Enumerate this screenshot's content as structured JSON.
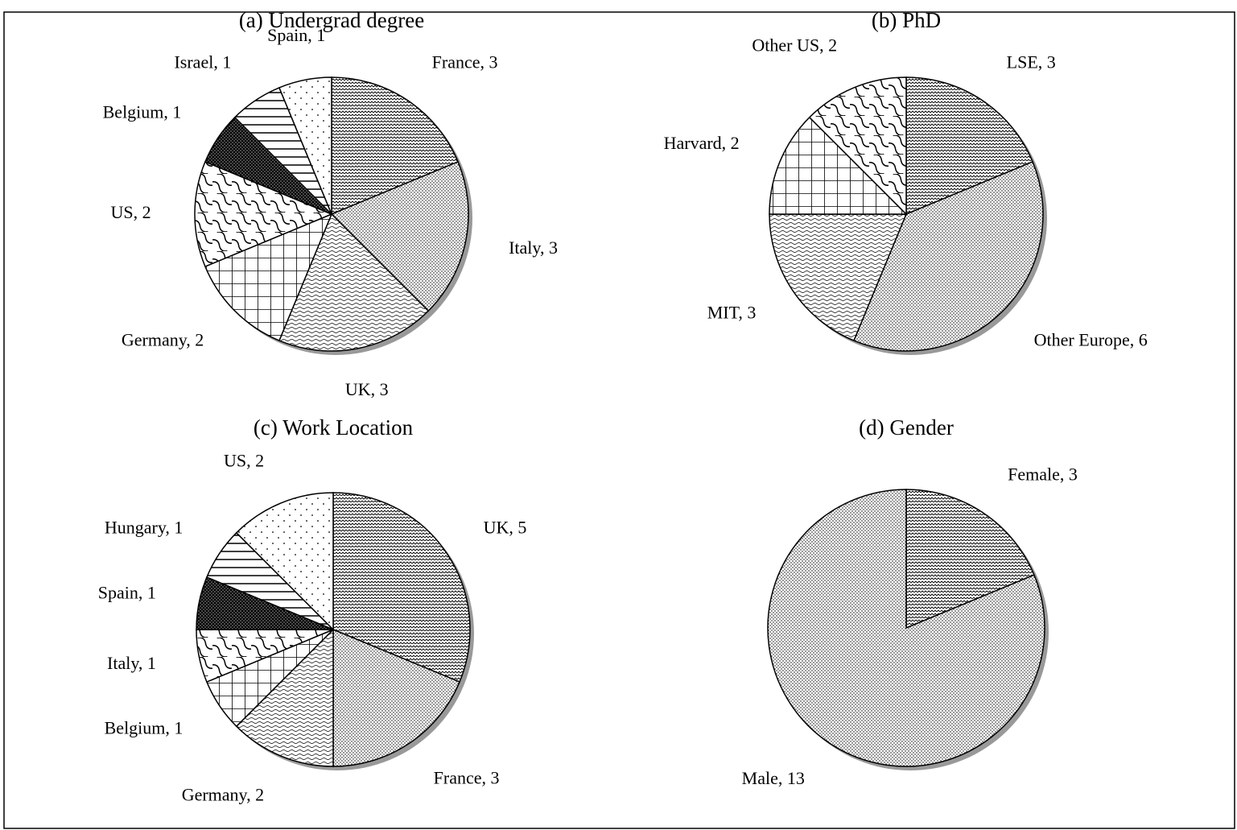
{
  "chart_data": [
    {
      "type": "pie",
      "title": "(a) Undergrad degree",
      "categories": [
        "France",
        "Italy",
        "UK",
        "Germany",
        "US",
        "Belgium",
        "Israel",
        "Spain"
      ],
      "values": [
        3,
        3,
        3,
        2,
        2,
        1,
        1,
        1
      ],
      "value_labels": [
        "France, 3",
        "Italy, 3",
        "UK, 3",
        "Germany, 2",
        "US, 2",
        "Belgium, 1",
        "Israel, 1",
        "Spain, 1"
      ]
    },
    {
      "type": "pie",
      "title": "(b) PhD",
      "categories": [
        "LSE",
        "Other Europe",
        "MIT",
        "Harvard",
        "Other US"
      ],
      "values": [
        3,
        6,
        3,
        2,
        2
      ],
      "value_labels": [
        "LSE, 3",
        "Other Europe, 6",
        "MIT, 3",
        "Harvard, 2",
        "Other US, 2"
      ]
    },
    {
      "type": "pie",
      "title": "(c) Work Location",
      "categories": [
        "UK",
        "France",
        "Germany",
        "Belgium",
        "Italy",
        "Spain",
        "Hungary",
        "US"
      ],
      "values": [
        5,
        3,
        2,
        1,
        1,
        1,
        1,
        2
      ],
      "value_labels": [
        "UK, 5",
        "France, 3",
        "Germany, 2",
        "Belgium, 1",
        "Italy, 1",
        "Spain, 1",
        "Hungary, 1",
        "US, 2"
      ]
    },
    {
      "type": "pie",
      "title": "(d)  Gender",
      "categories": [
        "Female",
        "Male"
      ],
      "values": [
        3,
        13
      ],
      "value_labels": [
        "Female, 3",
        "Male, 13"
      ]
    }
  ]
}
